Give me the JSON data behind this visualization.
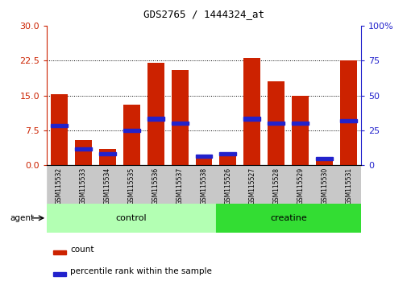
{
  "title": "GDS2765 / 1444324_at",
  "samples": [
    "GSM115532",
    "GSM115533",
    "GSM115534",
    "GSM115535",
    "GSM115536",
    "GSM115537",
    "GSM115538",
    "GSM115526",
    "GSM115527",
    "GSM115528",
    "GSM115529",
    "GSM115530",
    "GSM115531"
  ],
  "count_values": [
    15.3,
    5.5,
    3.5,
    13.0,
    22.0,
    20.5,
    2.0,
    2.5,
    23.0,
    18.0,
    15.0,
    1.5,
    22.5
  ],
  "percentile_values": [
    8.5,
    3.5,
    2.5,
    7.5,
    10.0,
    9.0,
    2.0,
    2.5,
    10.0,
    9.0,
    9.0,
    1.5,
    9.5
  ],
  "control_indices": [
    0,
    1,
    2,
    3,
    4,
    5,
    6
  ],
  "creatine_indices": [
    7,
    8,
    9,
    10,
    11,
    12
  ],
  "bar_color": "#cc2200",
  "percentile_color": "#2222cc",
  "control_color": "#b3ffb3",
  "creatine_color": "#33dd33",
  "tick_label_bg": "#d0d0d0",
  "left_tick_color": "#cc2200",
  "right_tick_color": "#2222cc",
  "legend_count_label": "count",
  "legend_pct_label": "percentile rank within the sample",
  "group_label": "agent"
}
